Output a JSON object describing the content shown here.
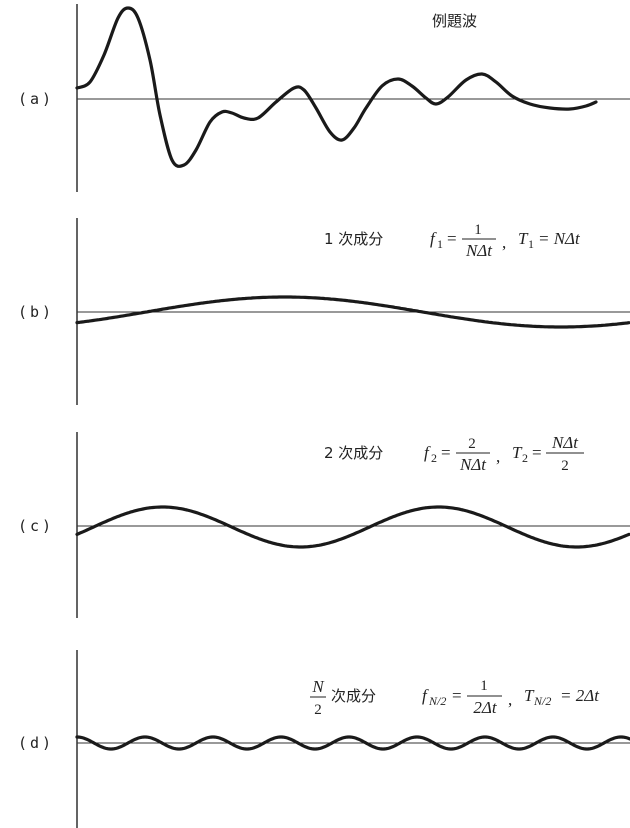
{
  "panels": [
    {
      "label": "(a)",
      "title": "例題波"
    },
    {
      "label": "(b)",
      "title": "1 次成分"
    },
    {
      "label": "(c)",
      "title": "2 次成分"
    },
    {
      "label": "(d)",
      "title": "次成分",
      "title_frac_num": "N",
      "title_frac_den": "2"
    }
  ],
  "formulas": {
    "b": {
      "f": "f",
      "f_sub": "1",
      "eq": "=",
      "num": "1",
      "den": "NΔt",
      "sep": ",",
      "T": "T",
      "T_sub": "1",
      "rhs": "= NΔt"
    },
    "c": {
      "f": "f",
      "f_sub": "2",
      "eq": "=",
      "num": "2",
      "den": "NΔt",
      "sep": ",",
      "T": "T",
      "T_sub": "2",
      "eq2": "=",
      "num2": "NΔt",
      "den2": "2"
    },
    "d": {
      "f": "f",
      "f_sub": "N/2",
      "eq": "=",
      "num": "1",
      "den": "2Δt",
      "sep": ",",
      "T": "T",
      "T_sub": "N/2",
      "rhs": "= 2Δt"
    }
  }
}
